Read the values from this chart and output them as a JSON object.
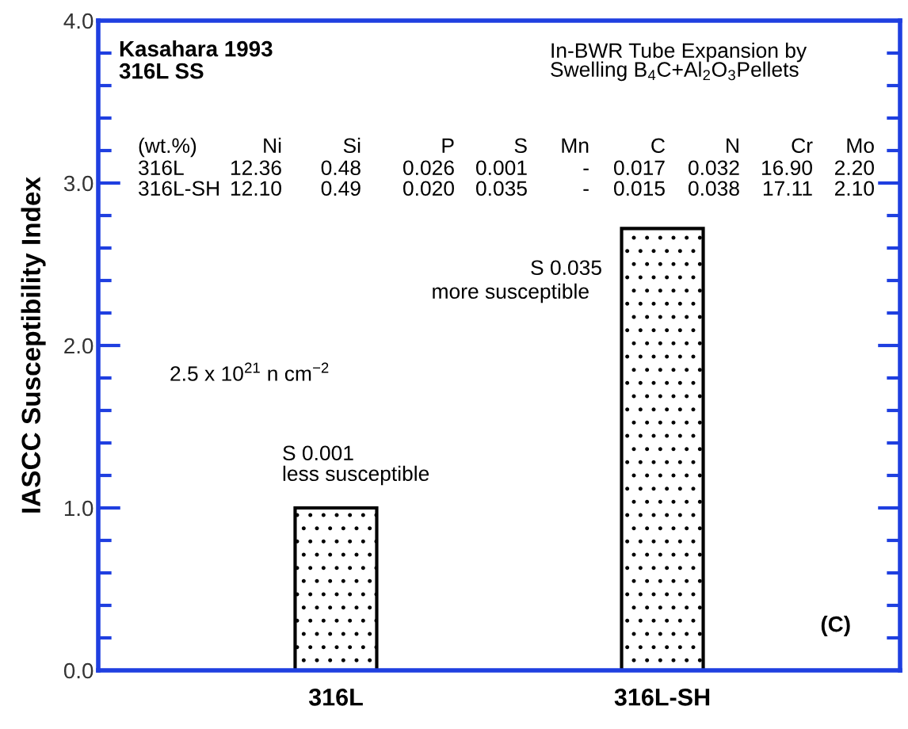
{
  "chart_data": {
    "type": "bar",
    "ylabel": "IASCC Susceptibility Index",
    "categories": [
      "316L",
      "316L-SH"
    ],
    "values": [
      1.0,
      2.72
    ],
    "color": "#000000",
    "ylim": [
      0,
      4
    ],
    "yticks": [
      {
        "value": 0,
        "label": "0.0"
      },
      {
        "value": 0.2,
        "label": null
      },
      {
        "value": 0.4,
        "label": null
      },
      {
        "value": 0.6,
        "label": null
      },
      {
        "value": 0.8,
        "label": null
      },
      {
        "value": 1,
        "label": "1.0"
      },
      {
        "value": 1.2,
        "label": null
      },
      {
        "value": 1.4,
        "label": null
      },
      {
        "value": 1.6,
        "label": null
      },
      {
        "value": 1.8,
        "label": null
      },
      {
        "value": 2,
        "label": "2.0"
      },
      {
        "value": 2.2,
        "label": null
      },
      {
        "value": 2.4,
        "label": null
      },
      {
        "value": 2.6,
        "label": null
      },
      {
        "value": 2.8,
        "label": null
      },
      {
        "value": 3,
        "label": "3.0"
      },
      {
        "value": 3.2,
        "label": null
      },
      {
        "value": 3.4,
        "label": null
      },
      {
        "value": 3.6,
        "label": null
      },
      {
        "value": 3.8,
        "label": null
      },
      {
        "value": 4,
        "label": "4.0"
      }
    ],
    "grid": false,
    "legend": false,
    "annotations": [
      "Kasahara 1993",
      "316L SS",
      "In-BWR Tube Expansion by",
      "Swelling B$_{4}$C+Al$_{2}$O$_{3}$Pellets",
      "(wt.%)",
      "Ni",
      "Si",
      "P",
      "S",
      "Mn",
      "C",
      "N",
      "Cr",
      "Mo",
      "316L",
      "12.36",
      "0.48",
      "0.026",
      "0.001",
      "-",
      "0.017",
      "0.032",
      "16.90",
      "2.20",
      "316L-SH",
      "12.10",
      "0.49",
      "0.020",
      "0.035",
      "-",
      "0.015",
      "0.038",
      "17.11",
      "2.10",
      "2.5 x 10$^{21}$ n cm$^{−2}$",
      "S 0.001",
      "less susceptible",
      "S 0.035",
      "more susceptible",
      "(C)"
    ]
  }
}
